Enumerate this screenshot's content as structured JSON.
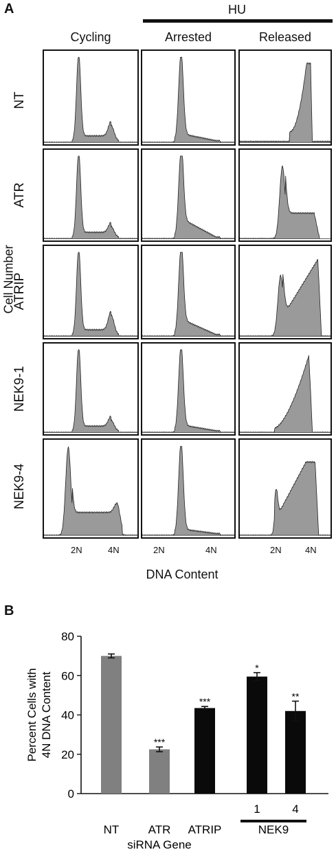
{
  "panel_a": {
    "letter": "A",
    "hu_label": "HU",
    "columns": [
      "Cycling",
      "Arrested",
      "Released"
    ],
    "rows": [
      "NT",
      "ATR",
      "ATRIP",
      "NEK9-1",
      "NEK9-4"
    ],
    "y_axis_label": "Cell Number",
    "x_axis_label": "DNA Content",
    "x_ticks": [
      "2N",
      "4N"
    ]
  },
  "panel_b": {
    "letter": "B"
  },
  "colors": {
    "fill": "#9a9a9a",
    "edge": "#222222",
    "gray_bar": "#808080",
    "black_bar": "#0a0a0a"
  },
  "chart_data": {
    "type": "bar",
    "categories": [
      "NT",
      "ATR",
      "ATRIP",
      "1",
      "4"
    ],
    "group_label": "NEK9",
    "values": [
      70,
      22.5,
      43.5,
      59.5,
      42
    ],
    "errors": [
      1,
      1.2,
      0.8,
      2,
      5
    ],
    "significance": [
      "",
      "***",
      "***",
      "*",
      "**"
    ],
    "bar_colors": [
      "gray",
      "gray",
      "black",
      "black",
      "black"
    ],
    "ylabel": "Percent Cells with 4N DNA Content",
    "xlabel": "siRNA Gene",
    "ylim": [
      0,
      80
    ],
    "yticks": [
      0,
      20,
      40,
      60,
      80
    ]
  }
}
